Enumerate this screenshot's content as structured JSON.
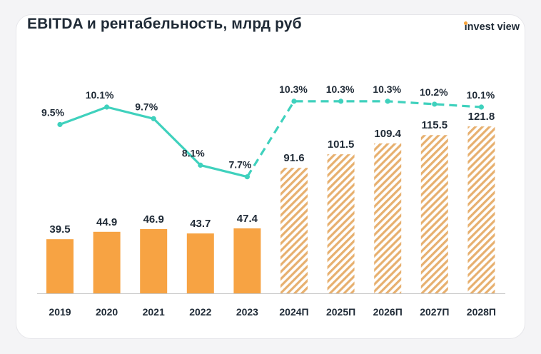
{
  "title": "EBITDA и рентабельность, млрд руб",
  "logo": {
    "text_1": "nvest view",
    "first_letter": "i"
  },
  "colors": {
    "bar_fact": "#f7a343",
    "bar_forecast": "#e7b06f",
    "line": "#3fd1bd",
    "text": "#1f2a36",
    "axis": "#c8c8c8"
  },
  "chart_data": {
    "type": "bar",
    "categories": [
      "2019",
      "2020",
      "2021",
      "2022",
      "2023",
      "2024П",
      "2025П",
      "2026П",
      "2027П",
      "2028П"
    ],
    "series": [
      {
        "type": "bar",
        "values": [
          39.5,
          44.9,
          46.9,
          43.7,
          47.4,
          91.6,
          101.5,
          109.4,
          115.5,
          121.8
        ],
        "labels": [
          "39.5",
          "44.9",
          "46.9",
          "43.7",
          "47.4",
          "91.6",
          "101.5",
          "109.4",
          "115.5",
          "121.8"
        ],
        "forecast_from_index": 5
      },
      {
        "type": "line",
        "values": [
          9.5,
          10.1,
          9.7,
          8.1,
          7.7,
          10.3,
          10.3,
          10.3,
          10.2,
          10.1
        ],
        "labels": [
          "9.5%",
          "10.1%",
          "9.7%",
          "8.1%",
          "7.7%",
          "10.3%",
          "10.3%",
          "10.3%",
          "10.2%",
          "10.1%"
        ],
        "unit": "%",
        "dashed_from_index": 4
      }
    ],
    "xlabel": "",
    "ylabel": "",
    "grid": false,
    "legend": "none"
  }
}
